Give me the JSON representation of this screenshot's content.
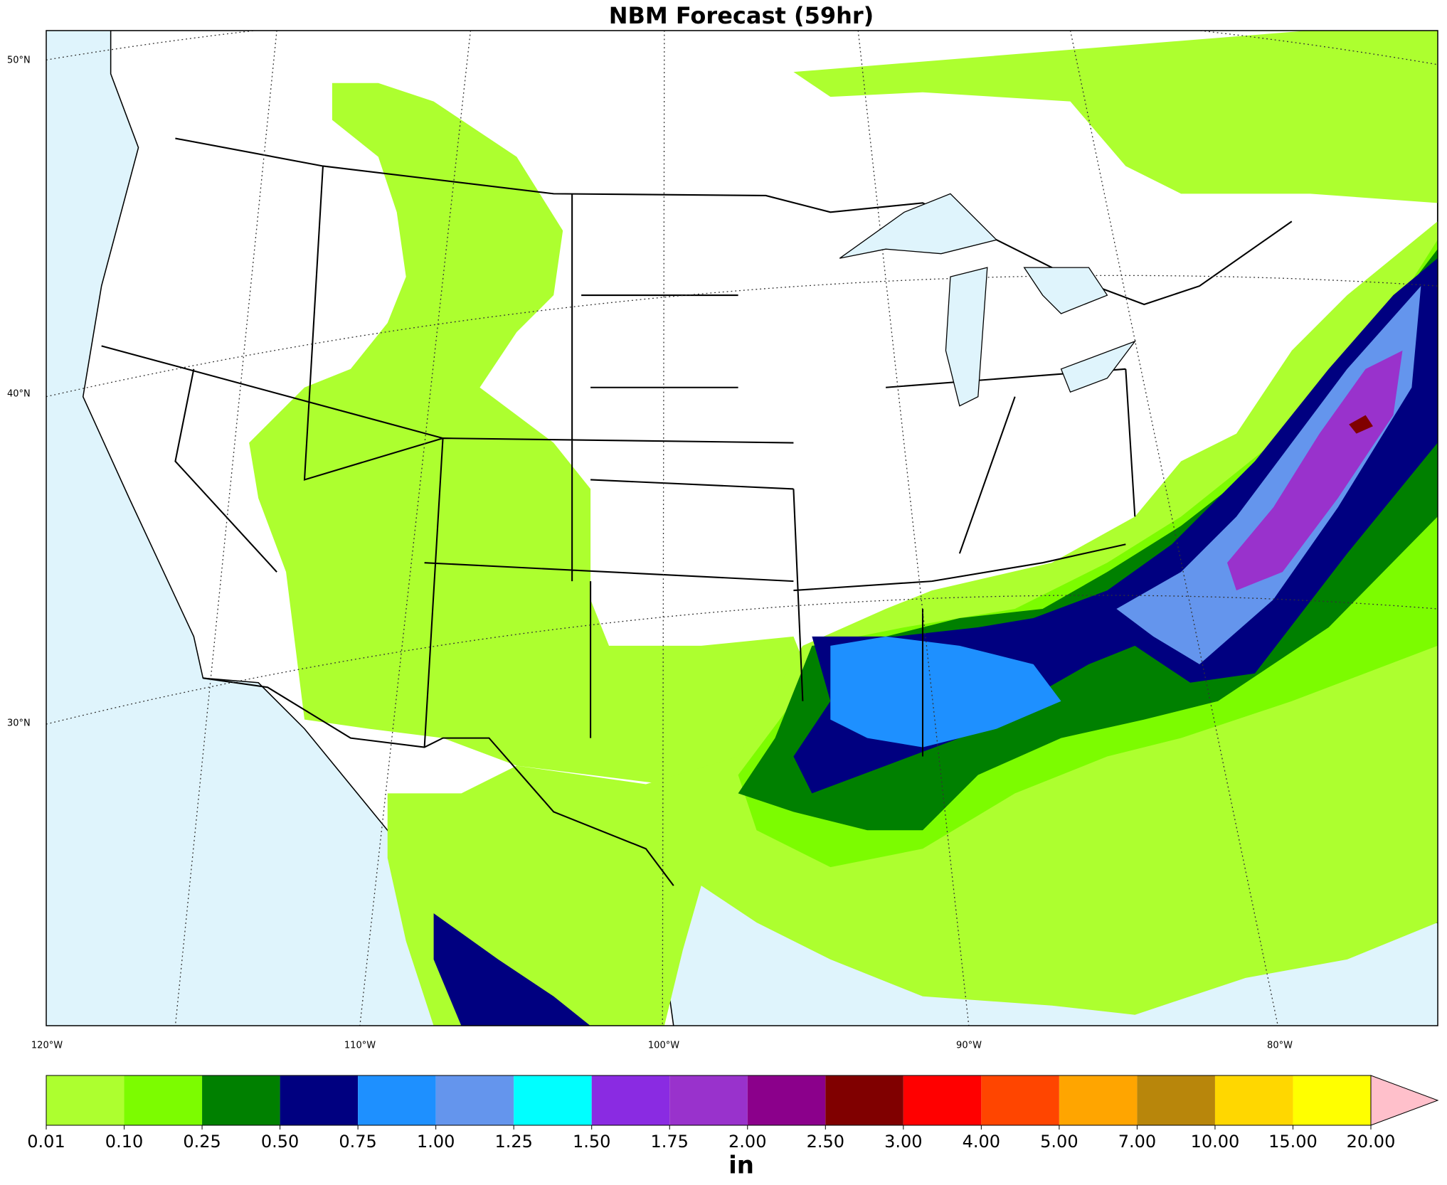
{
  "title": "NBM Forecast (59hr)",
  "lat_labels": [
    "50°N",
    "40°N",
    "30°N"
  ],
  "lon_labels": [
    "120°W",
    "110°W",
    "100°W",
    "90°W",
    "80°W"
  ],
  "colorbar": {
    "labels": [
      "0.01",
      "0.10",
      "0.25",
      "0.50",
      "0.75",
      "1.00",
      "1.25",
      "1.50",
      "1.75",
      "2.00",
      "2.50",
      "3.00",
      "4.00",
      "5.00",
      "7.00",
      "10.00",
      "15.00",
      "20.00"
    ],
    "colors": [
      "#adff2f",
      "#7cfc00",
      "#008000",
      "#000080",
      "#1e90ff",
      "#6495ed",
      "#00ffff",
      "#8a2be2",
      "#9932cc",
      "#8b008b",
      "#800000",
      "#ff0000",
      "#ff4500",
      "#ffa500",
      "#b8860b",
      "#ffd700",
      "#ffff00"
    ],
    "over_color": "#ffc0cb",
    "unit": "in"
  }
}
